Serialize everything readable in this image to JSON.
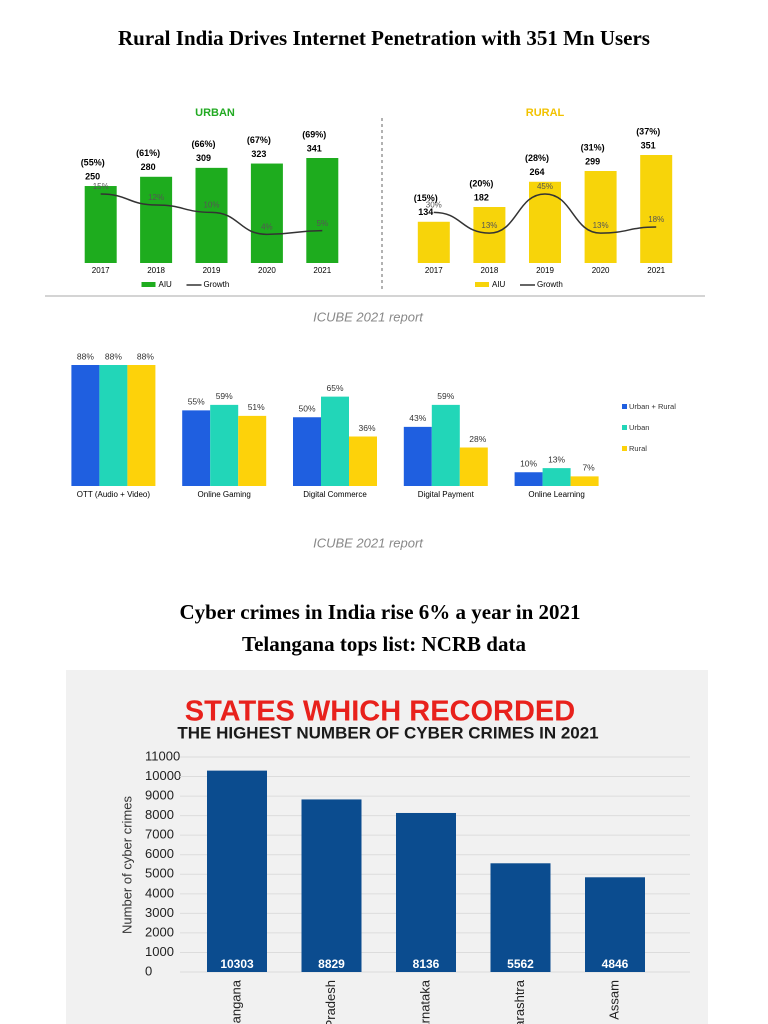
{
  "headings": [
    "Rural India Drives Internet Penetration with 351 Mn Users",
    "Cyber crimes in India rise 6% a year in 2021",
    "Telangana tops list: NCRB data"
  ],
  "captions": [
    "ICUBE 2021 report",
    "ICUBE 2021 report"
  ],
  "chart_data": [
    {
      "type": "bar-line",
      "title": "URBAN",
      "title_color": "#22aa22",
      "categories": [
        "2017",
        "2018",
        "2019",
        "2020",
        "2021"
      ],
      "series": [
        {
          "name": "AIU",
          "color": "#1eac1e",
          "values": [
            250,
            280,
            309,
            323,
            341
          ]
        },
        {
          "name": "Growth",
          "color": "#333333",
          "values": [
            15,
            12,
            10,
            4,
            5
          ],
          "value_labels": [
            "15%",
            "12%",
            "10%",
            "4%",
            "5%"
          ]
        }
      ],
      "shares": {
        "values": [
          55,
          61,
          66,
          67,
          69
        ],
        "value_labels": [
          "(55%)",
          "(61%)",
          "(66%)",
          "(67%)",
          "(69%)"
        ]
      }
    },
    {
      "type": "bar-line",
      "title": "RURAL",
      "title_color": "#f2c200",
      "categories": [
        "2017",
        "2018",
        "2019",
        "2020",
        "2021"
      ],
      "series": [
        {
          "name": "AIU",
          "color": "#f7d40a",
          "values": [
            134,
            182,
            264,
            299,
            351
          ]
        },
        {
          "name": "Growth",
          "color": "#333333",
          "values": [
            30,
            13,
            45,
            13,
            18
          ],
          "value_labels": [
            "30%",
            "13%",
            "45%",
            "13%",
            "18%"
          ]
        }
      ],
      "shares": {
        "values": [
          15,
          20,
          28,
          31,
          37
        ],
        "value_labels": [
          "(15%)",
          "(20%)",
          "(28%)",
          "(31%)",
          "(37%)"
        ]
      }
    },
    {
      "type": "grouped-bar",
      "categories": [
        "OTT (Audio + Video)",
        "Online Gaming",
        "Digital Commerce",
        "Digital Payment",
        "Online Learning"
      ],
      "series": [
        {
          "name": "Urban + Rural",
          "color": "#1f5fe0",
          "values": [
            88,
            55,
            50,
            43,
            10
          ],
          "value_labels": [
            "88%",
            "55%",
            "50%",
            "43%",
            "10%"
          ]
        },
        {
          "name": "Urban",
          "color": "#22d6b8",
          "values": [
            88,
            59,
            65,
            59,
            13
          ],
          "value_labels": [
            "88%",
            "59%",
            "65%",
            "59%",
            "13%"
          ]
        },
        {
          "name": "Rural",
          "color": "#fdd20a",
          "values": [
            88,
            51,
            36,
            28,
            7
          ],
          "value_labels": [
            "88%",
            "51%",
            "36%",
            "28%",
            "7%"
          ]
        }
      ]
    },
    {
      "type": "bar",
      "title": "STATES WHICH RECORDED",
      "subtitle": "THE HIGHEST NUMBER OF CYBER CRIMES IN 2021",
      "y_label": "Number of cyber crimes",
      "categories": [
        "Telangana",
        "Uttar Pradesh",
        "Karnataka",
        "Maharashtra",
        "Assam"
      ],
      "values": [
        10303,
        8829,
        8136,
        5562,
        4846
      ],
      "color": "#0b4c8f",
      "ylim": [
        0,
        11000
      ],
      "yticks": [
        0,
        1000,
        2000,
        3000,
        4000,
        5000,
        6000,
        7000,
        8000,
        9000,
        10000,
        11000
      ],
      "grid": true
    }
  ]
}
